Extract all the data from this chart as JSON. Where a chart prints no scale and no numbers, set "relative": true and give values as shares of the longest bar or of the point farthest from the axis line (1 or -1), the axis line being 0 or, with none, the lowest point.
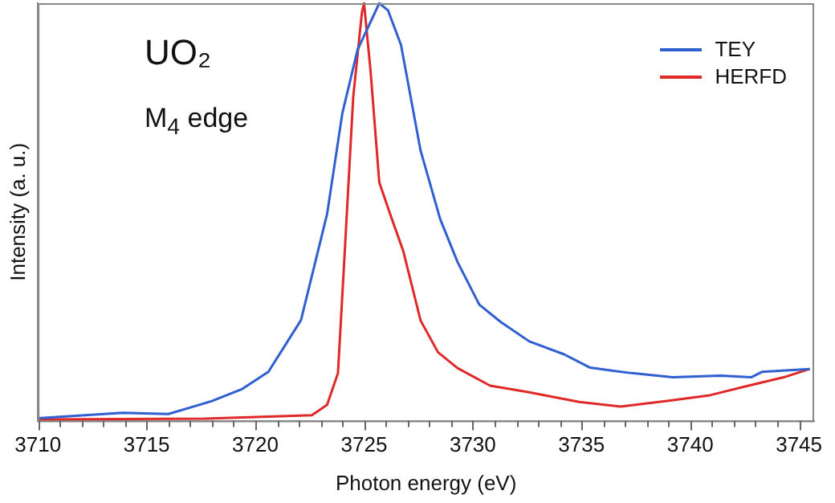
{
  "chart_data": {
    "type": "line",
    "xlabel": "Photon energy (eV)",
    "ylabel": "Intensity (a. u.)",
    "relative": true,
    "legend": "top right",
    "marker": "none",
    "grid": false,
    "annotations": [
      "UO₂",
      "M$_{4}$ edge"
    ],
    "xlim": [
      3710,
      3745.7
    ],
    "xticks": [
      3710,
      {
        "value": 3711,
        "label": null
      },
      {
        "value": 3712,
        "label": null
      },
      {
        "value": 3713,
        "label": null
      },
      {
        "value": 3714,
        "label": null
      },
      3715,
      {
        "value": 3716,
        "label": null
      },
      {
        "value": 3717,
        "label": null
      },
      {
        "value": 3718,
        "label": null
      },
      {
        "value": 3719,
        "label": null
      },
      3720,
      {
        "value": 3721,
        "label": null
      },
      {
        "value": 3722,
        "label": null
      },
      {
        "value": 3723,
        "label": null
      },
      {
        "value": 3724,
        "label": null
      },
      3725,
      {
        "value": 3726,
        "label": null
      },
      {
        "value": 3727,
        "label": null
      },
      {
        "value": 3728,
        "label": null
      },
      {
        "value": 3729,
        "label": null
      },
      3730,
      {
        "value": 3731,
        "label": null
      },
      {
        "value": 3732,
        "label": null
      },
      {
        "value": 3733,
        "label": null
      },
      {
        "value": 3734,
        "label": null
      },
      3735,
      {
        "value": 3736,
        "label": null
      },
      {
        "value": 3737,
        "label": null
      },
      {
        "value": 3738,
        "label": null
      },
      {
        "value": 3739,
        "label": null
      },
      3740,
      {
        "value": 3741,
        "label": null
      },
      {
        "value": 3742,
        "label": null
      },
      {
        "value": 3743,
        "label": null
      },
      {
        "value": 3744,
        "label": null
      },
      3745
    ],
    "series": [
      {
        "name": "TEY",
        "color": "#2f5fd0",
        "x": [
          3710,
          3713.9,
          3716,
          3718,
          3719.4,
          3720.6,
          3722.1,
          3723.3,
          3724,
          3724.7,
          3725.7,
          3726.1,
          3726.7,
          3727.6,
          3728.5,
          3729.3,
          3730.3,
          3731.3,
          3732.6,
          3734.2,
          3735.4,
          3737.3,
          3739.2,
          3741.4,
          3742.8,
          3743.3,
          3745.5
        ],
        "values": [
          0.006,
          0.019,
          0.016,
          0.047,
          0.076,
          0.117,
          0.241,
          0.495,
          0.736,
          0.888,
          1,
          0.983,
          0.9,
          0.647,
          0.483,
          0.38,
          0.278,
          0.236,
          0.19,
          0.159,
          0.127,
          0.114,
          0.104,
          0.108,
          0.104,
          0.117,
          0.124
        ]
      },
      {
        "name": "HERFD",
        "color": "#e02828",
        "x": [
          3710,
          3717.7,
          3722.6,
          3723.3,
          3723.8,
          3724.1,
          3724.5,
          3724.9,
          3725,
          3725.3,
          3725.7,
          3726.2,
          3726.8,
          3727.6,
          3728.4,
          3729.3,
          3730.8,
          3732.5,
          3734.9,
          3736.8,
          3739,
          3740.9,
          3742.6,
          3744.3,
          3745.5
        ],
        "values": [
          0.003,
          0.005,
          0.013,
          0.038,
          0.114,
          0.393,
          0.774,
          0.977,
          1,
          0.837,
          0.571,
          0.495,
          0.407,
          0.24,
          0.164,
          0.126,
          0.084,
          0.069,
          0.045,
          0.034,
          0.048,
          0.061,
          0.083,
          0.104,
          0.124
        ]
      }
    ]
  }
}
